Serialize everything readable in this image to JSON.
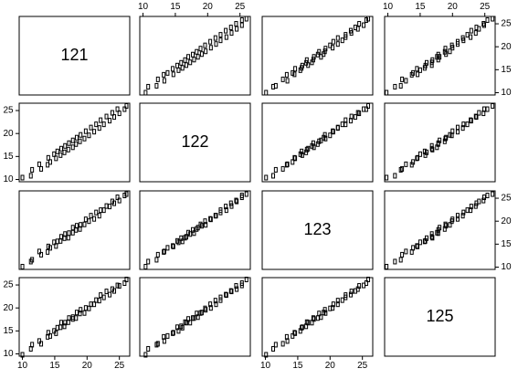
{
  "chart_data": {
    "type": "scatter_matrix",
    "variables": [
      {
        "name": "121",
        "values": [
          10.0,
          11.3,
          11.5,
          12.9,
          12.6,
          13.9,
          14.3,
          14.0,
          15.2,
          14.9,
          15.9,
          15.4,
          16.5,
          16.0,
          17.1,
          16.6,
          17.8,
          17.2,
          18.3,
          17.8,
          18.9,
          18.4,
          19.6,
          19.0,
          20.3,
          19.8,
          21.1,
          20.6,
          21.9,
          21.4,
          22.6,
          22.1,
          23.5,
          23.0,
          24.2,
          23.9,
          25.0,
          24.7,
          25.8,
          26.1
        ]
      },
      {
        "name": "122",
        "values": [
          10.4,
          10.8,
          12.1,
          12.3,
          13.3,
          13.2,
          13.8,
          14.7,
          14.6,
          15.5,
          15.3,
          16.1,
          15.9,
          16.7,
          16.5,
          17.3,
          17.0,
          17.9,
          17.7,
          18.5,
          18.3,
          19.1,
          18.9,
          19.7,
          19.6,
          20.5,
          20.4,
          21.3,
          21.2,
          22.0,
          22.0,
          22.9,
          22.8,
          23.7,
          23.6,
          24.5,
          24.4,
          25.3,
          25.3,
          26.0
        ]
      },
      {
        "name": "123",
        "values": [
          10.1,
          11.2,
          11.6,
          12.7,
          13.4,
          13.3,
          14.2,
          14.5,
          14.6,
          15.4,
          15.7,
          15.6,
          16.3,
          16.6,
          16.4,
          17.2,
          17.5,
          17.4,
          18.1,
          18.6,
          18.3,
          19.0,
          19.3,
          19.2,
          20.0,
          20.4,
          20.5,
          21.2,
          21.2,
          21.9,
          22.4,
          22.4,
          23.2,
          23.3,
          23.9,
          24.3,
          24.5,
          25.2,
          25.6,
          25.9
        ]
      },
      {
        "name": "125",
        "values": [
          9.8,
          11.1,
          12.0,
          12.2,
          12.8,
          13.7,
          13.9,
          14.6,
          14.5,
          15.0,
          15.8,
          15.7,
          16.0,
          16.8,
          16.9,
          16.8,
          17.6,
          17.8,
          17.8,
          18.0,
          18.8,
          19.0,
          18.9,
          19.6,
          19.9,
          20.0,
          20.8,
          20.8,
          21.6,
          21.7,
          22.3,
          22.8,
          22.9,
          23.6,
          23.7,
          24.1,
          24.8,
          24.9,
          25.4,
          26.2
        ]
      }
    ],
    "xlim": [
      9.5,
      26.6
    ],
    "ylim": [
      9.5,
      26.6
    ],
    "xticks": [
      10,
      15,
      20,
      25
    ],
    "yticks": [
      10,
      15,
      20,
      25
    ],
    "color": "#000000"
  }
}
